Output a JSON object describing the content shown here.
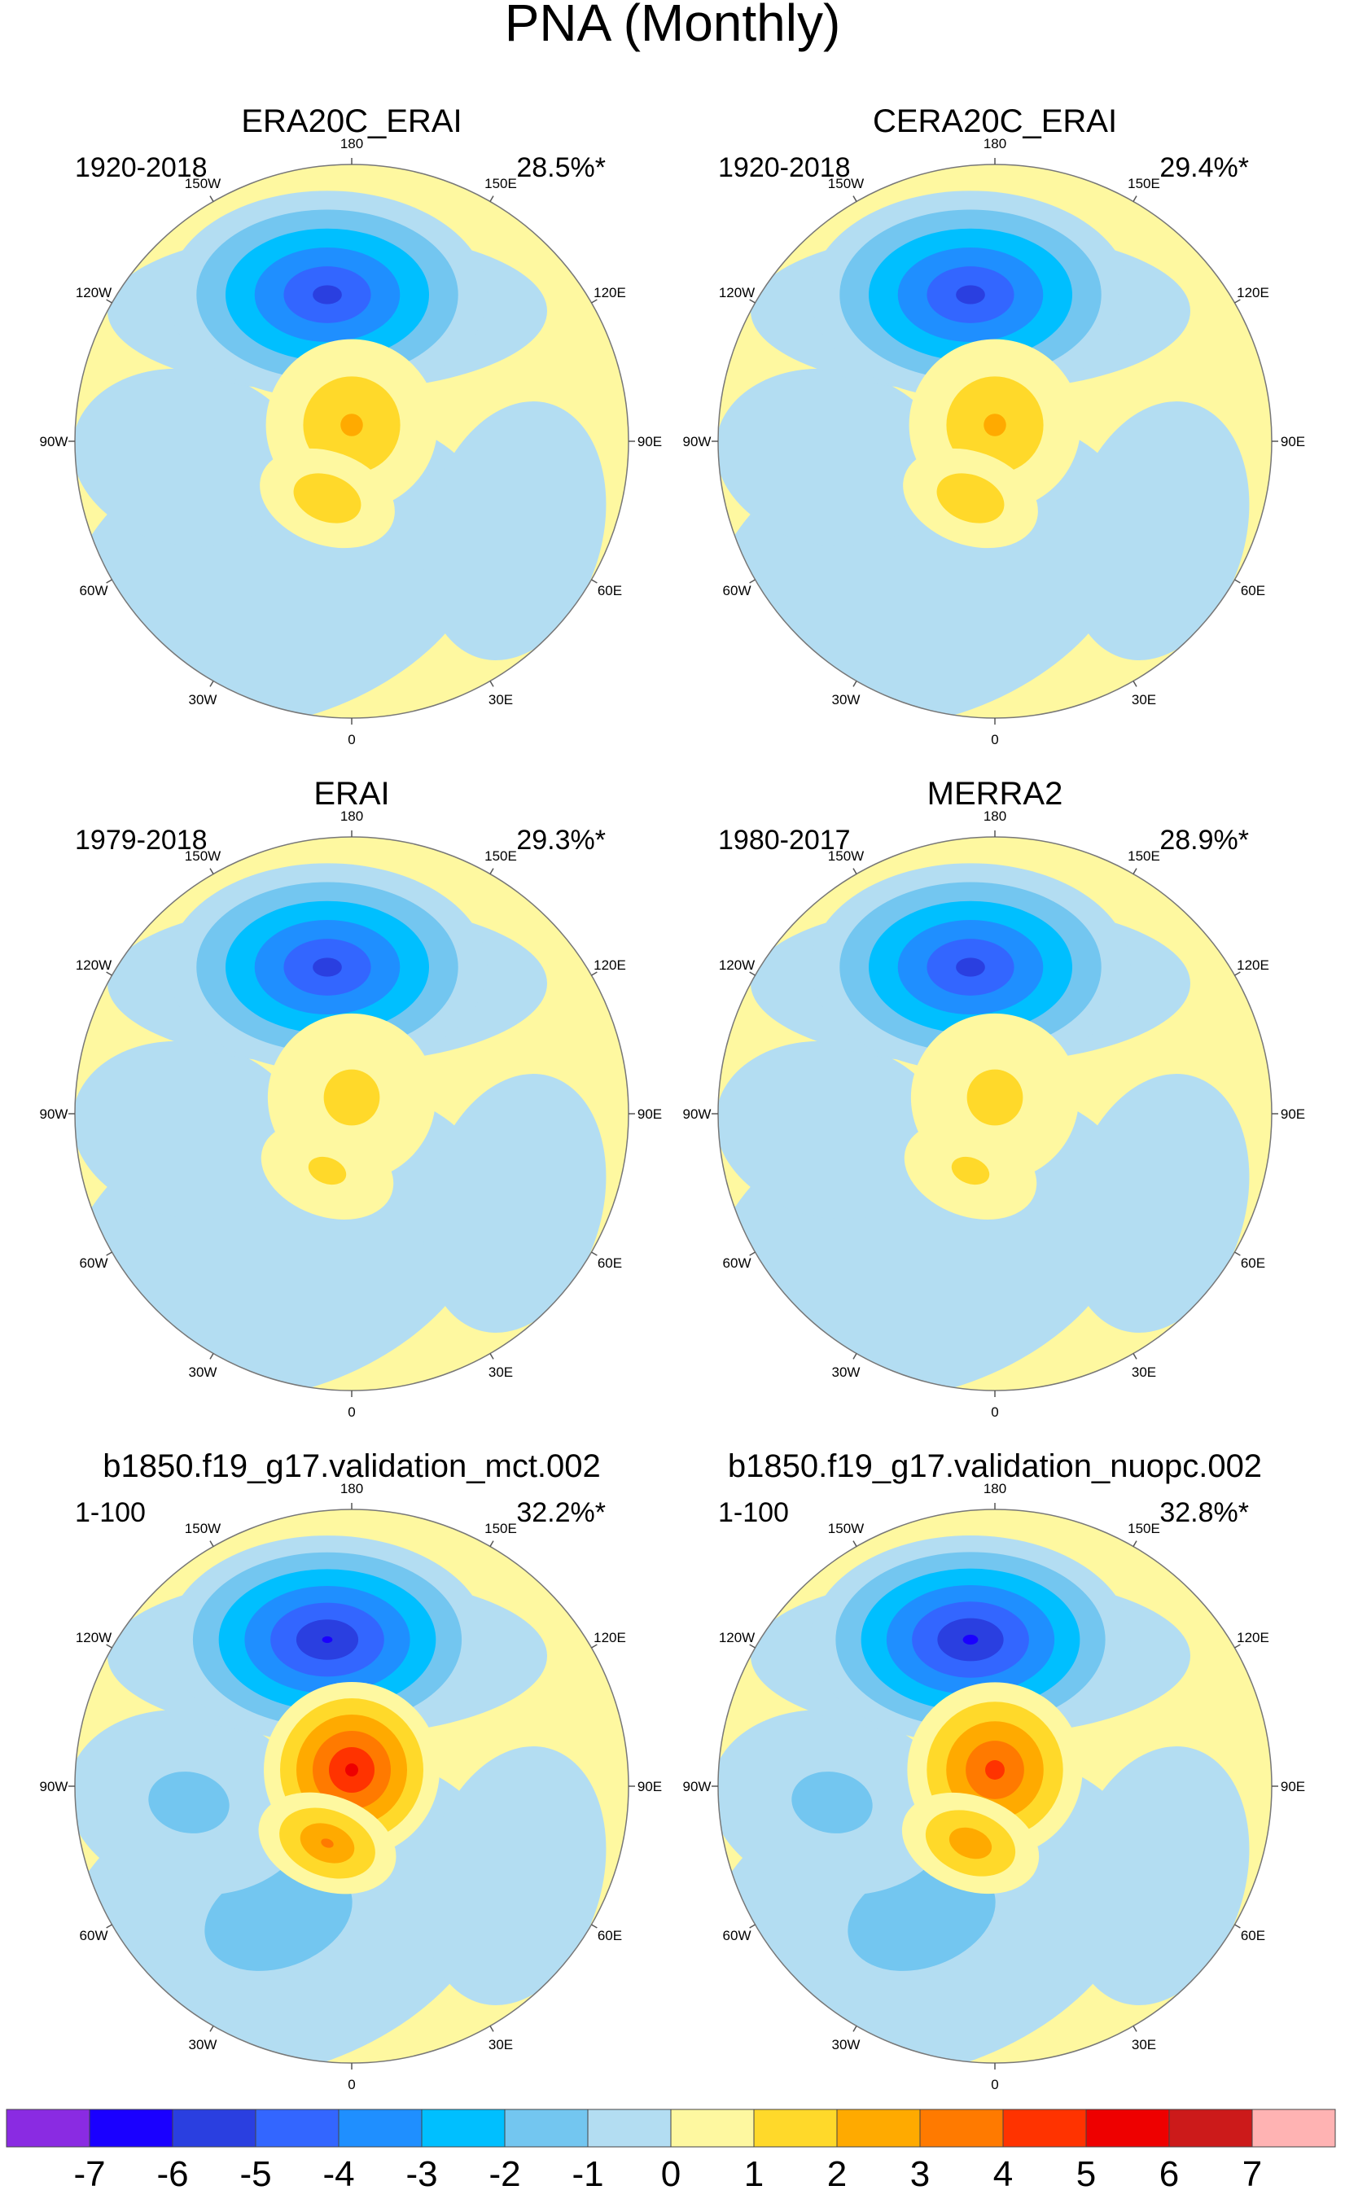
{
  "chart_data": {
    "type": "polar-contour-panels",
    "title": "PNA (Monthly)",
    "projection": "north-polar-stereographic",
    "longitude_labels": [
      "180",
      "150E",
      "120E",
      "90E",
      "60E",
      "30E",
      "0",
      "30W",
      "60W",
      "90W",
      "120W",
      "150W"
    ],
    "panels": [
      {
        "name": "ERA20C_ERAI",
        "period": "1920-2018",
        "variance": "28.5%*",
        "center_low": -5.6,
        "center_high": 2.4,
        "high2": 2.1,
        "atl_low": -1,
        "eurasia_low": -1
      },
      {
        "name": "CERA20C_ERAI",
        "period": "1920-2018",
        "variance": "29.4%*",
        "center_low": -5.6,
        "center_high": 2.4,
        "high2": 2.1,
        "atl_low": -1,
        "eurasia_low": -1
      },
      {
        "name": "ERAI",
        "period": "1979-2018",
        "variance": "29.3%*",
        "center_low": -5.6,
        "center_high": 1.6,
        "high2": 1.5,
        "atl_low": -1,
        "eurasia_low": -1
      },
      {
        "name": "MERRA2",
        "period": "1980-2017",
        "variance": "28.9%*",
        "center_low": -5.6,
        "center_high": 1.6,
        "high2": 1.5,
        "atl_low": -1,
        "eurasia_low": -1
      },
      {
        "name": "b1850.f19_g17.validation_mct.002",
        "period": "1-100",
        "variance": "32.2%*",
        "center_low": -6.3,
        "center_high": 5.5,
        "high2": 3.4,
        "atl_low": -1.6,
        "eurasia_low": -1
      },
      {
        "name": "b1850.f19_g17.validation_nuopc.002",
        "period": "1-100",
        "variance": "32.8%*",
        "center_low": -6.4,
        "center_high": 4.6,
        "high2": 3.0,
        "atl_low": -1.6,
        "eurasia_low": -1
      }
    ],
    "colorbar": {
      "levels": [
        -7,
        -6,
        -5,
        -4,
        -3,
        -2,
        -1,
        0,
        1,
        2,
        3,
        4,
        5,
        6,
        7
      ],
      "labels": [
        "-7",
        "-6",
        "-5",
        "-4",
        "-3",
        "-2",
        "-1",
        "0",
        "1",
        "2",
        "3",
        "4",
        "5",
        "6",
        "7"
      ],
      "colors": [
        "#8a2be2",
        "#1a00ff",
        "#2a3fe0",
        "#3366ff",
        "#1f8fff",
        "#00bfff",
        "#73c6f0",
        "#b3ddf2",
        "#fef8a0",
        "#ffd92a",
        "#ffaa00",
        "#ff7a00",
        "#ff3300",
        "#ee0000",
        "#cc1a1a",
        "#ffb3b3"
      ]
    }
  }
}
